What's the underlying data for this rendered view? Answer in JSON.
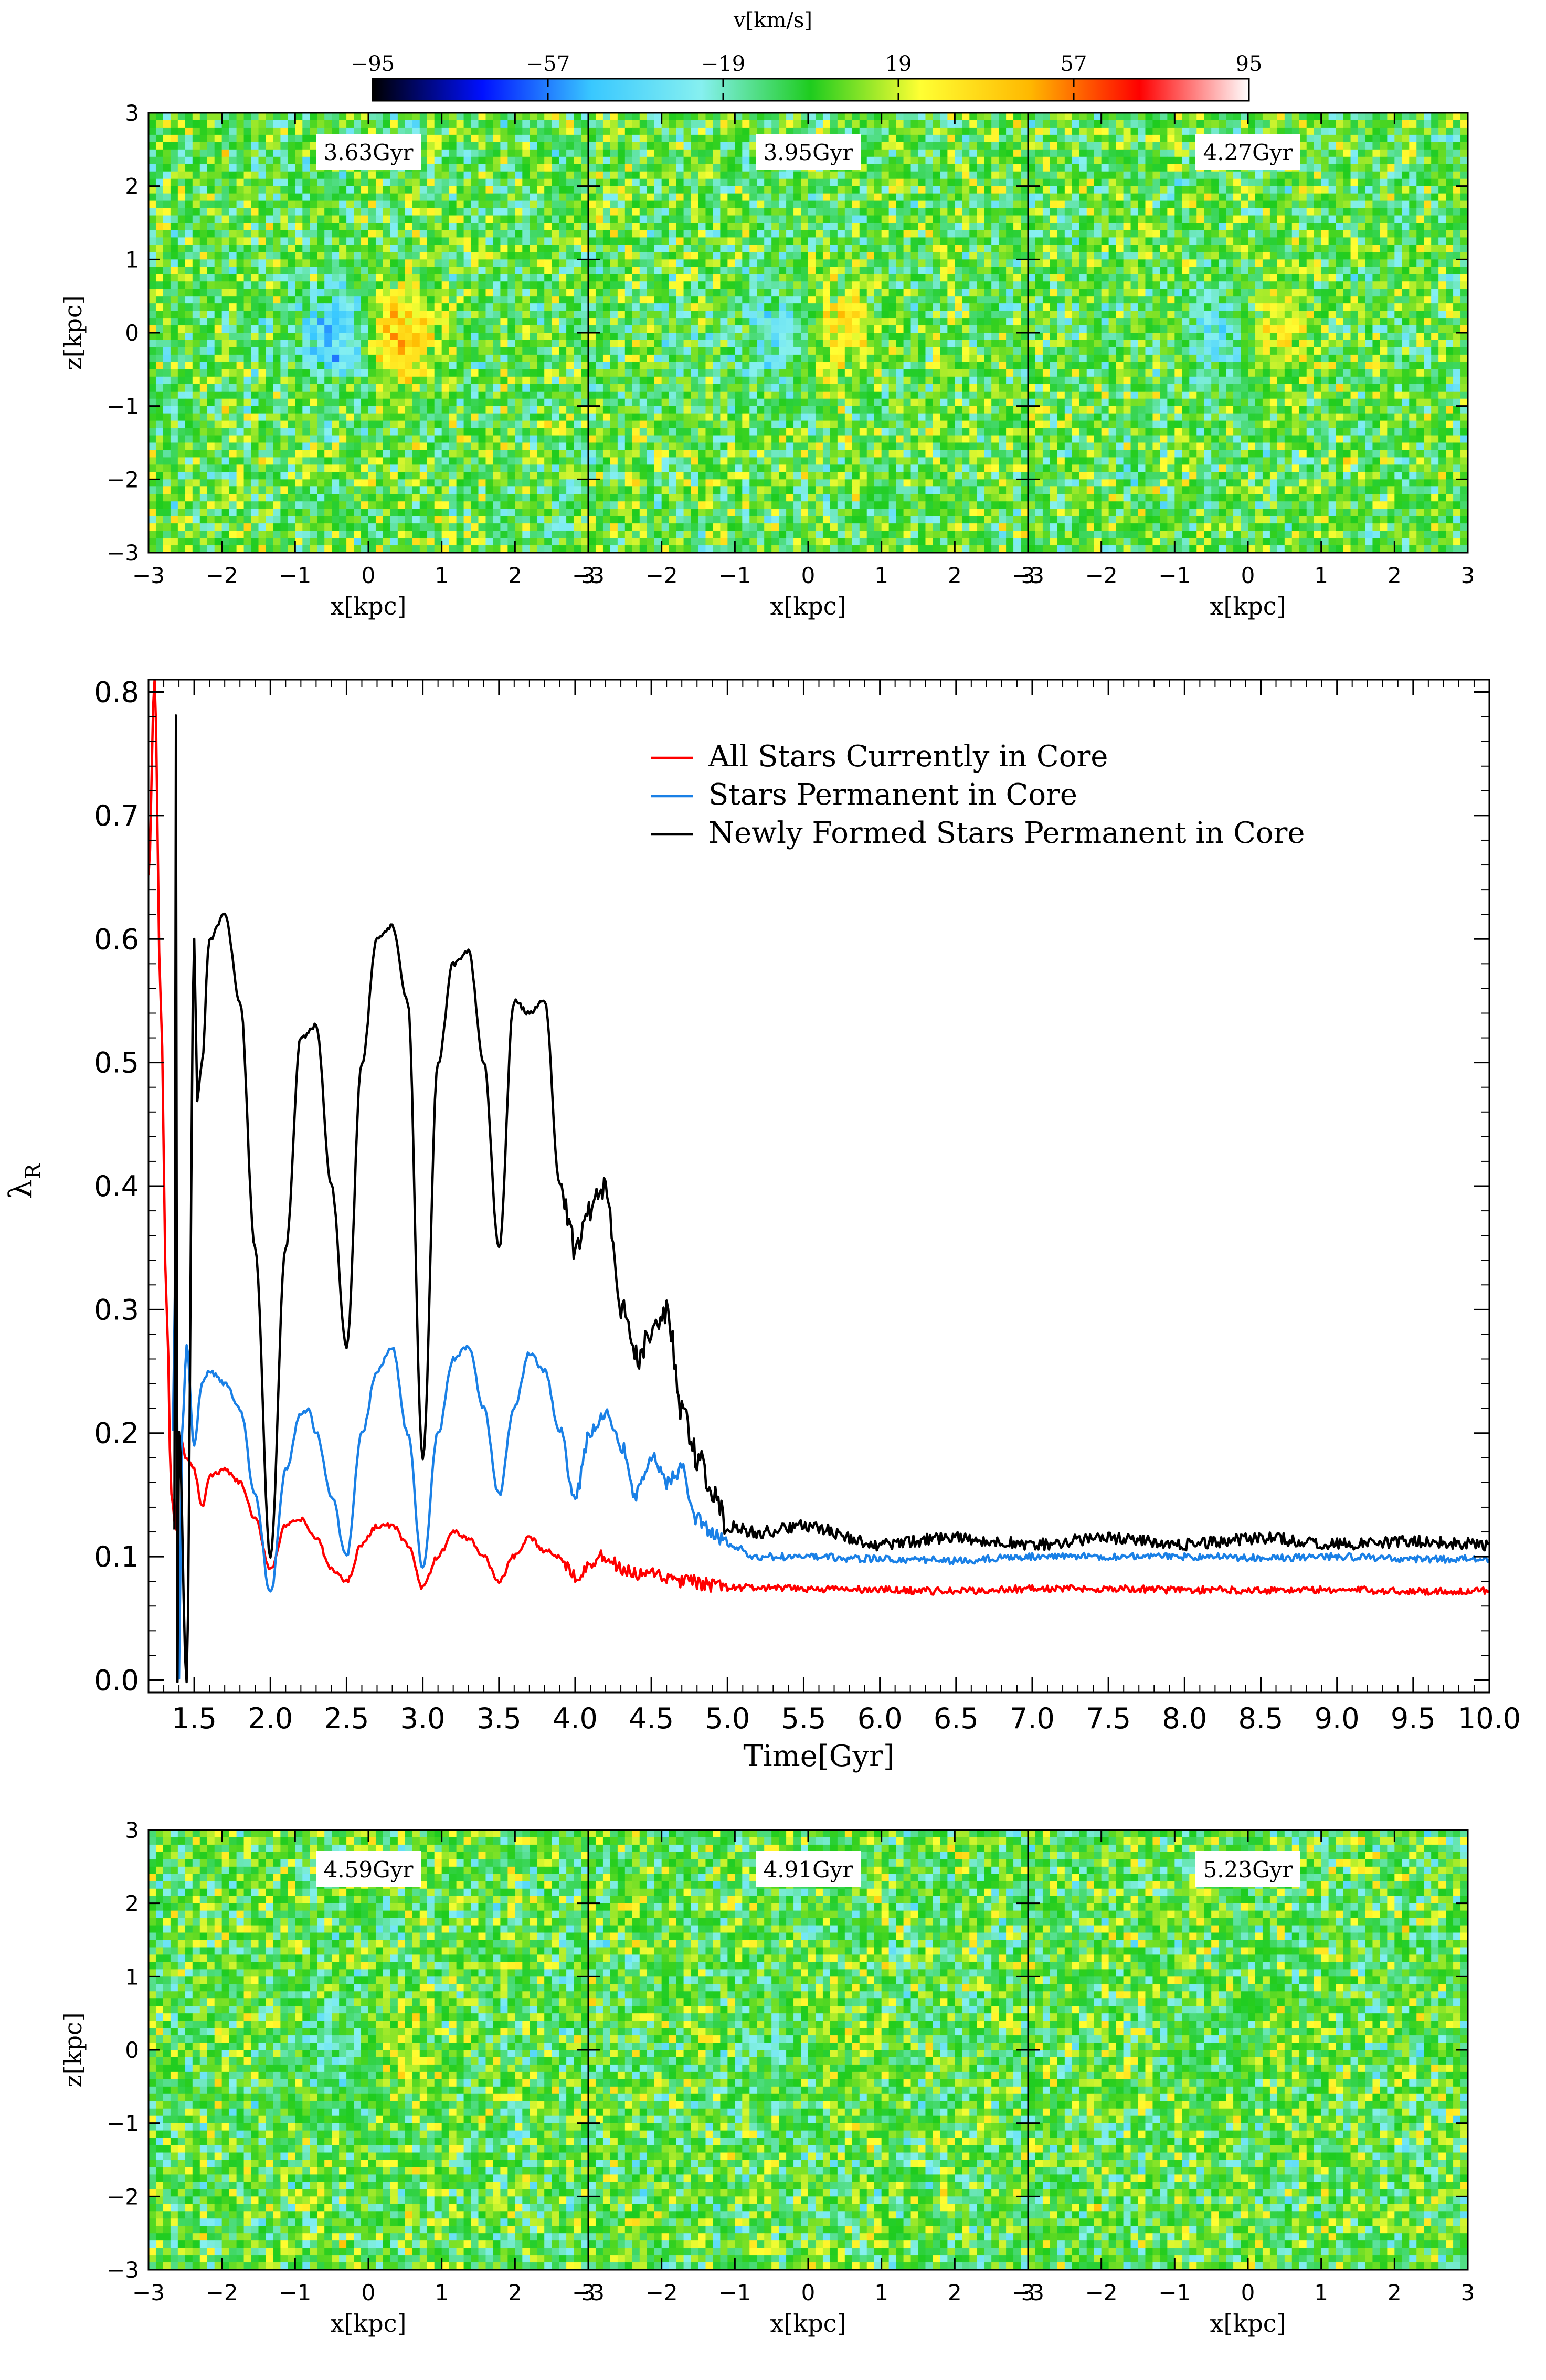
{
  "colorbar": {
    "label": "v[km/s]",
    "ticks": [
      "−95",
      "−57",
      "−19",
      "19",
      "57",
      "95"
    ],
    "tick_values": [
      -95,
      -57,
      -19,
      19,
      57,
      95
    ],
    "colors": [
      "#000000",
      "#0010ff",
      "#39c8ff",
      "#86f0f0",
      "#1ecc1e",
      "#ffff33",
      "#ffb800",
      "#ff0000",
      "#ffffff"
    ]
  },
  "maps": {
    "xlabel": "x[kpc]",
    "ylabel": "z[kpc]",
    "xticks": [
      "−3",
      "−2",
      "−1",
      "0",
      "1",
      "2",
      "3"
    ],
    "yticks": [
      "3",
      "2",
      "1",
      "0",
      "−1",
      "−2",
      "−3"
    ],
    "tick_values": [
      -3,
      -2,
      -1,
      0,
      1,
      2,
      3
    ],
    "range": [
      -3,
      3
    ],
    "top_panels": [
      {
        "time": "3.63Gyr",
        "amplitude": 90,
        "sign": 1
      },
      {
        "time": "3.95Gyr",
        "amplitude": 55,
        "sign": 1
      },
      {
        "time": "4.27Gyr",
        "amplitude": 50,
        "sign": 1
      }
    ],
    "bottom_panels": [
      {
        "time": "4.59Gyr",
        "amplitude": 35,
        "sign": 1
      },
      {
        "time": "4.91Gyr",
        "amplitude": 20,
        "sign": 1
      },
      {
        "time": "5.23Gyr",
        "amplitude": 12,
        "sign": 1
      }
    ]
  },
  "chart_data": {
    "type": "line",
    "xlabel": "Time[Gyr]",
    "ylabel_main": "λ",
    "ylabel_sub": "R",
    "xlim": [
      1.2,
      10.0
    ],
    "ylim": [
      -0.01,
      0.81
    ],
    "xticks": [
      1.5,
      2.0,
      2.5,
      3.0,
      3.5,
      4.0,
      4.5,
      5.0,
      5.5,
      6.0,
      6.5,
      7.0,
      7.5,
      8.0,
      8.5,
      9.0,
      9.5,
      10.0
    ],
    "xtick_labels": [
      "1.5",
      "2.0",
      "2.5",
      "3.0",
      "3.5",
      "4.0",
      "4.5",
      "5.0",
      "5.5",
      "6.0",
      "6.5",
      "7.0",
      "7.5",
      "8.0",
      "8.5",
      "9.0",
      "9.5",
      "10.0"
    ],
    "yticks": [
      0.0,
      0.1,
      0.2,
      0.3,
      0.4,
      0.5,
      0.6,
      0.7,
      0.8
    ],
    "ytick_labels": [
      "0.0",
      "0.1",
      "0.2",
      "0.3",
      "0.4",
      "0.5",
      "0.6",
      "0.7",
      "0.8"
    ],
    "legend_position": "top-right",
    "series": [
      {
        "name": "All Stars Currently in Core",
        "color": "#ff0000",
        "x": [
          1.2,
          1.24,
          1.28,
          1.32,
          1.35,
          1.38,
          1.4,
          1.45,
          1.5,
          1.55,
          1.6,
          1.7,
          1.8,
          1.9,
          2.0,
          2.1,
          2.2,
          2.3,
          2.4,
          2.5,
          2.6,
          2.7,
          2.8,
          2.9,
          3.0,
          3.1,
          3.2,
          3.3,
          3.4,
          3.5,
          3.6,
          3.7,
          3.8,
          3.9,
          4.0,
          4.1,
          4.2,
          4.3,
          4.4,
          4.5,
          4.7,
          5.0,
          5.5,
          6.0,
          6.5,
          7.0,
          7.5,
          8.0,
          8.5,
          9.0,
          9.5,
          10.0
        ],
        "y": [
          0.65,
          0.81,
          0.55,
          0.3,
          0.15,
          0.12,
          0.2,
          0.18,
          0.17,
          0.14,
          0.165,
          0.17,
          0.16,
          0.13,
          0.09,
          0.125,
          0.13,
          0.115,
          0.09,
          0.08,
          0.11,
          0.125,
          0.125,
          0.11,
          0.075,
          0.1,
          0.12,
          0.115,
          0.1,
          0.08,
          0.1,
          0.115,
          0.105,
          0.1,
          0.085,
          0.095,
          0.1,
          0.09,
          0.085,
          0.085,
          0.08,
          0.075,
          0.074,
          0.073,
          0.072,
          0.074,
          0.074,
          0.073,
          0.073,
          0.073,
          0.072,
          0.072
        ]
      },
      {
        "name": "Stars Permanent in Core",
        "color": "#1a80e6",
        "x": [
          1.36,
          1.38,
          1.4,
          1.42,
          1.45,
          1.5,
          1.55,
          1.6,
          1.7,
          1.8,
          1.9,
          2.0,
          2.1,
          2.2,
          2.25,
          2.3,
          2.4,
          2.5,
          2.6,
          2.7,
          2.8,
          2.9,
          3.0,
          3.1,
          3.2,
          3.3,
          3.4,
          3.5,
          3.6,
          3.7,
          3.8,
          3.9,
          4.0,
          4.1,
          4.2,
          4.3,
          4.4,
          4.5,
          4.6,
          4.7,
          4.8,
          4.9,
          5.0,
          5.2,
          5.5,
          6.0,
          6.5,
          7.0,
          7.5,
          8.0,
          8.5,
          9.0,
          9.5,
          10.0
        ],
        "y": [
          0.2,
          0.37,
          0.0,
          0.2,
          0.27,
          0.19,
          0.24,
          0.25,
          0.24,
          0.22,
          0.15,
          0.07,
          0.17,
          0.215,
          0.22,
          0.2,
          0.15,
          0.1,
          0.2,
          0.25,
          0.27,
          0.2,
          0.09,
          0.2,
          0.26,
          0.27,
          0.22,
          0.15,
          0.22,
          0.265,
          0.25,
          0.2,
          0.15,
          0.2,
          0.215,
          0.19,
          0.15,
          0.18,
          0.16,
          0.17,
          0.13,
          0.12,
          0.11,
          0.1,
          0.1,
          0.098,
          0.097,
          0.1,
          0.1,
          0.1,
          0.099,
          0.1,
          0.098,
          0.098
        ]
      },
      {
        "name": "Newly Formed Stars Permanent in Core",
        "color": "#000000",
        "x": [
          1.37,
          1.38,
          1.39,
          1.4,
          1.45,
          1.5,
          1.52,
          1.55,
          1.6,
          1.7,
          1.8,
          1.9,
          2.0,
          2.1,
          2.2,
          2.3,
          2.4,
          2.5,
          2.6,
          2.7,
          2.8,
          2.9,
          3.0,
          3.1,
          3.2,
          3.3,
          3.4,
          3.5,
          3.6,
          3.7,
          3.8,
          3.9,
          4.0,
          4.1,
          4.2,
          4.3,
          4.4,
          4.5,
          4.6,
          4.7,
          4.8,
          4.9,
          5.0,
          5.2,
          5.5,
          6.0,
          6.5,
          7.0,
          7.5,
          8.0,
          8.5,
          9.0,
          9.5,
          10.0
        ],
        "y": [
          0.12,
          0.78,
          0.0,
          0.2,
          0.0,
          0.6,
          0.47,
          0.5,
          0.6,
          0.62,
          0.55,
          0.35,
          0.1,
          0.35,
          0.52,
          0.53,
          0.4,
          0.27,
          0.5,
          0.6,
          0.61,
          0.55,
          0.18,
          0.5,
          0.58,
          0.59,
          0.5,
          0.35,
          0.55,
          0.54,
          0.55,
          0.4,
          0.35,
          0.38,
          0.4,
          0.3,
          0.26,
          0.28,
          0.3,
          0.22,
          0.18,
          0.15,
          0.125,
          0.12,
          0.125,
          0.11,
          0.115,
          0.11,
          0.115,
          0.11,
          0.115,
          0.11,
          0.112,
          0.11
        ]
      }
    ]
  }
}
